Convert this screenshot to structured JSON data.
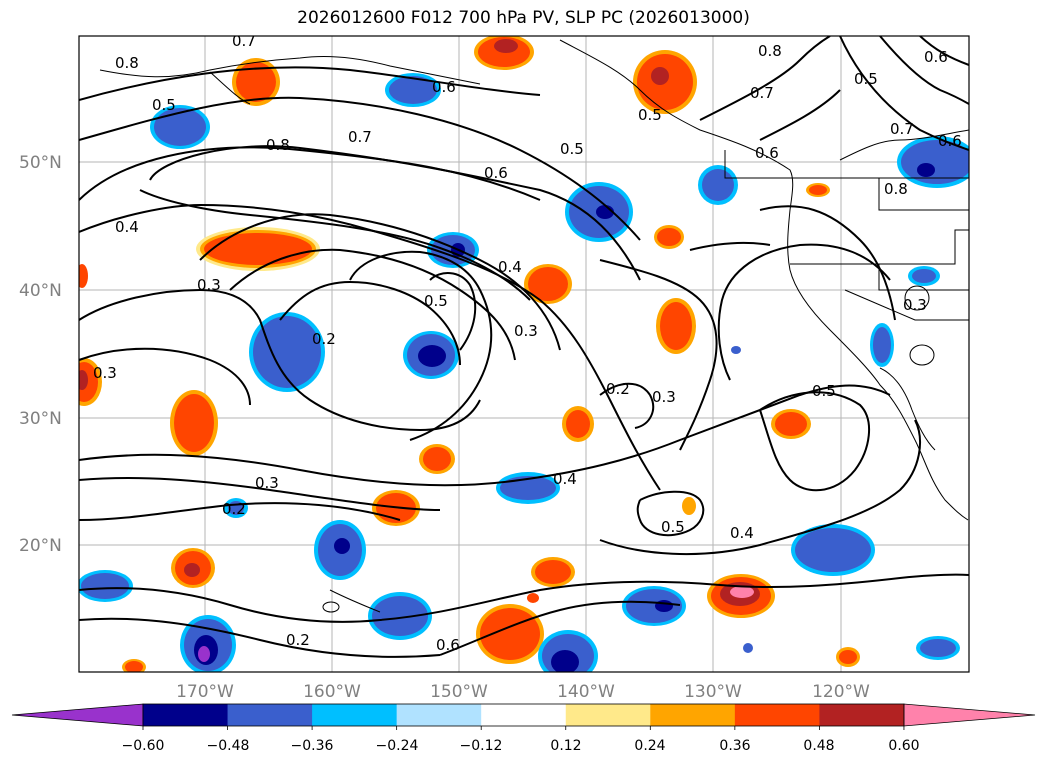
{
  "title": "2026012600 F012 700 hPa PV, SLP PC (2026013000)",
  "lat_labels": [
    "50°N",
    "40°N",
    "30°N",
    "20°N"
  ],
  "lon_labels": [
    "170°W",
    "160°W",
    "150°W",
    "140°W",
    "130°W",
    "120°W"
  ],
  "contour_labels": [
    "0.7",
    "0.8",
    "0.5",
    "0.6",
    "0.8",
    "0.7",
    "0.8",
    "0.4",
    "0.6",
    "0.5",
    "0.5",
    "0.7",
    "0.6",
    "0.7",
    "0.5",
    "0.6",
    "0.8",
    "0.3",
    "0.4",
    "0.5",
    "0.3",
    "0.2",
    "0.3",
    "0.2",
    "0.3",
    "0.3",
    "0.4",
    "0.2",
    "0.5",
    "0.4",
    "0.5",
    "0.3",
    "0.2",
    "0.6",
    "0.6"
  ],
  "colorbar": {
    "ticks": [
      "−0.60",
      "−0.48",
      "−0.36",
      "−0.24",
      "−0.12",
      "0.12",
      "0.24",
      "0.36",
      "0.48",
      "0.60"
    ],
    "colors": [
      "#9932cc",
      "#00008b",
      "#3a5fcd",
      "#00bfff",
      "#b0e2ff",
      "#ffffff",
      "#ffe98a",
      "#ffa500",
      "#ff4500",
      "#b22222",
      "#ff82ab"
    ]
  }
}
